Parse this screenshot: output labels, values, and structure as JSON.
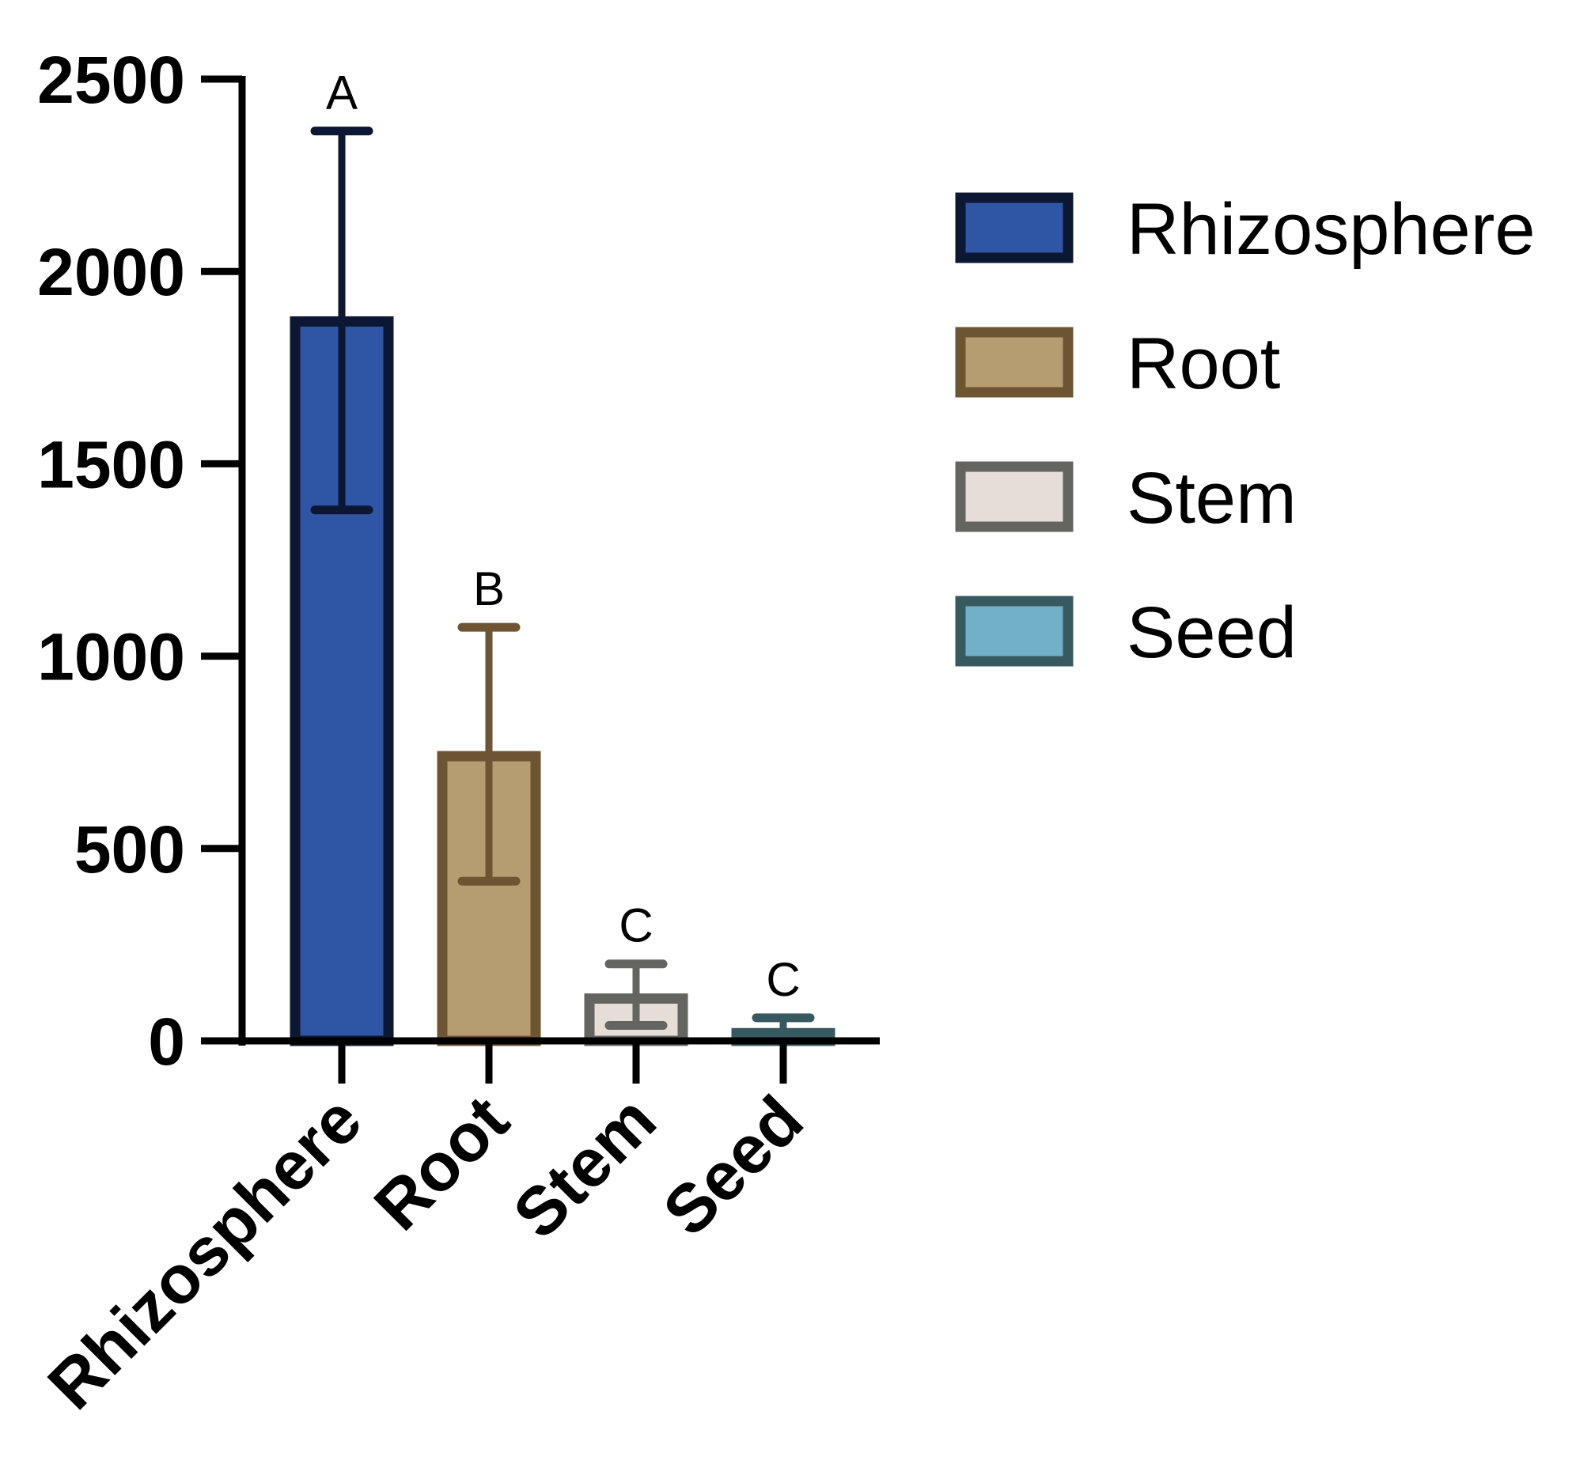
{
  "chart_data": {
    "type": "bar",
    "title": "",
    "xlabel": "",
    "ylabel": "",
    "ylim": [
      0,
      2500
    ],
    "yticks": [
      0,
      500,
      1000,
      1500,
      2000,
      2500
    ],
    "ytick_labels": [
      "0",
      "500",
      "1000",
      "1500",
      "2000",
      "2500"
    ],
    "categories": [
      "Rhizosphere",
      "Root",
      "Stem",
      "Seed"
    ],
    "values": [
      1870,
      740,
      110,
      20
    ],
    "error_low": [
      1380,
      415,
      40,
      0
    ],
    "error_high": [
      2365,
      1075,
      200,
      60
    ],
    "significance": [
      "A",
      "B",
      "C",
      "C"
    ],
    "grid": false,
    "legend_position": "right",
    "legend": [
      {
        "label": "Rhizosphere",
        "fill": "#2f56a4",
        "stroke": "#0b1733"
      },
      {
        "label": "Root",
        "fill": "#b69c71",
        "stroke": "#6d5533"
      },
      {
        "label": "Stem",
        "fill": "#e5ddd6",
        "stroke": "#646460"
      },
      {
        "label": "Seed",
        "fill": "#72b0c8",
        "stroke": "#375a60"
      }
    ],
    "colors": {
      "fills": [
        "#2f56a4",
        "#b69c71",
        "#e5ddd6",
        "#72b0c8"
      ],
      "strokes": [
        "#0b1733",
        "#6d5533",
        "#646460",
        "#375a60"
      ]
    }
  }
}
